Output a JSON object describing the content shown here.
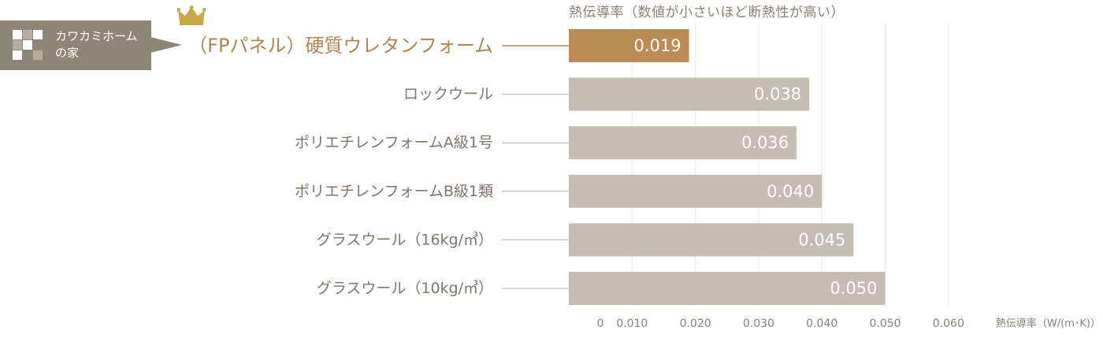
{
  "chart_data": {
    "type": "bar",
    "orientation": "horizontal",
    "title": "熱伝導率（数値が小さいほど断熱性が高い）",
    "xlabel": "熱伝導率（W/(m･K)）",
    "categories": [
      "（FPパネル）硬質ウレタンフォーム",
      "ロックウール",
      "ポリエチレンフォームA級1号",
      "ポリエチレンフォームB級1類",
      "グラスウール（16kg/㎥）",
      "グラスウール（10kg/㎥）"
    ],
    "values": [
      0.019,
      0.038,
      0.036,
      0.04,
      0.045,
      0.05
    ],
    "value_labels": [
      "0.019",
      "0.038",
      "0.036",
      "0.040",
      "0.045",
      "0.050"
    ],
    "highlight_index": 0,
    "xlim": [
      0,
      0.065
    ],
    "xticks": [
      0,
      0.01,
      0.02,
      0.03,
      0.04,
      0.05,
      0.06
    ],
    "xtick_labels": [
      "0",
      "0.010",
      "0.020",
      "0.030",
      "0.040",
      "0.050",
      "0.060"
    ],
    "grid": true,
    "colors": {
      "highlight_bar": "#bb8c56",
      "bar": "#c3bdb2",
      "highlight_label": "#b0854f",
      "label": "#7f756b",
      "grid": "#ece9e5",
      "connector": "#b5aea5",
      "highlight_connector": "#b0854f"
    }
  },
  "badge": {
    "text": "カワカミホーム\nの家",
    "color": "#8f8577"
  },
  "crown_icon": {
    "name": "crown-icon",
    "color": "#c9a947"
  }
}
